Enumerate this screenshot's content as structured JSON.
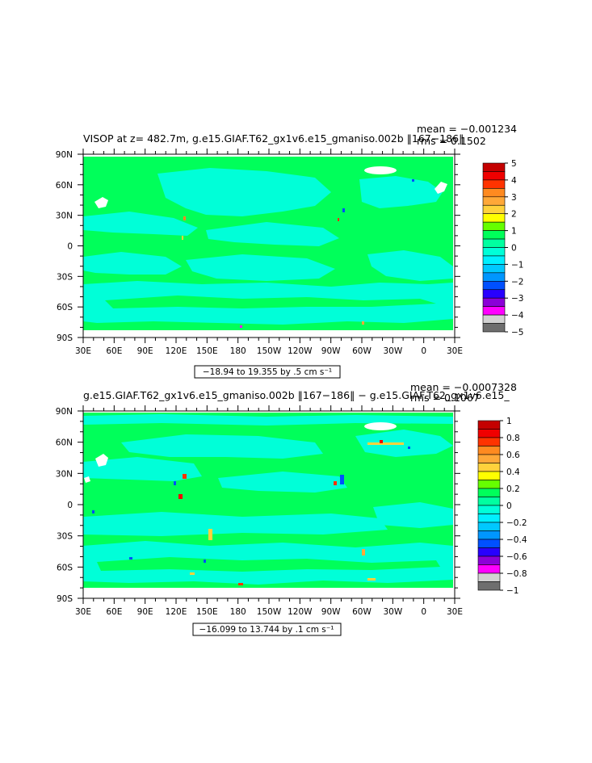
{
  "colors": {
    "green": "#00ff5a",
    "cyan": "#00ffd8",
    "land": "#ffffff",
    "frame": "#000000"
  },
  "x_tick_labels": [
    "30E",
    "60E",
    "90E",
    "120E",
    "150E",
    "180",
    "150W",
    "120W",
    "90W",
    "60W",
    "30W",
    "0",
    "30E"
  ],
  "y_tick_labels": [
    "90N",
    "60N",
    "30N",
    "0",
    "30S",
    "60S",
    "90S"
  ],
  "panels": [
    {
      "id": "top",
      "title": "VISOP at z= 482.7m, g.e15.GIAF.T62_gx1v6.e15_gmaniso.002b ‖167−186‖",
      "mean": "mean = −0.001234",
      "rms": "rms = 0.1502",
      "range_label": "−18.94 to 19.355 by .5 cm s⁻¹",
      "colorbar_labels": [
        "5",
        "4",
        "3",
        "2",
        "1",
        "0",
        "−1",
        "−2",
        "−3",
        "−4",
        "−5"
      ],
      "colorbar_colors": [
        "#c40000",
        "#f00000",
        "#ff3300",
        "#ff8a20",
        "#ffa838",
        "#ffd23c",
        "#ffff00",
        "#66ff00",
        "#00ff5a",
        "#00ffa0",
        "#00ffd8",
        "#00f0ff",
        "#00c8ff",
        "#0096ff",
        "#0050ff",
        "#2800ff",
        "#8c00d8",
        "#ff00ff",
        "#d2d2d2",
        "#6e6e6e"
      ]
    },
    {
      "id": "bottom",
      "title": "g.e15.GIAF.T62_gx1v6.e15_gmaniso.002b ‖167−186‖ − g.e15.GIAF.T62_gx1v6.e15_",
      "mean": "mean = −0.0007328",
      "rms": "rms = 0.1067",
      "range_label": "−16.099 to 13.744 by .1 cm s⁻¹",
      "colorbar_labels": [
        "1",
        "0.8",
        "0.6",
        "0.4",
        "0.2",
        "0",
        "−0.2",
        "−0.4",
        "−0.6",
        "−0.8",
        "−1"
      ],
      "colorbar_colors": [
        "#c40000",
        "#f00000",
        "#ff3300",
        "#ff8a20",
        "#ffa838",
        "#ffd23c",
        "#ffff00",
        "#66ff00",
        "#00ff5a",
        "#00ffa0",
        "#00ffd8",
        "#00f0ff",
        "#00c8ff",
        "#0096ff",
        "#0050ff",
        "#2800ff",
        "#8c00d8",
        "#ff00ff",
        "#d2d2d2",
        "#6e6e6e"
      ]
    }
  ]
}
